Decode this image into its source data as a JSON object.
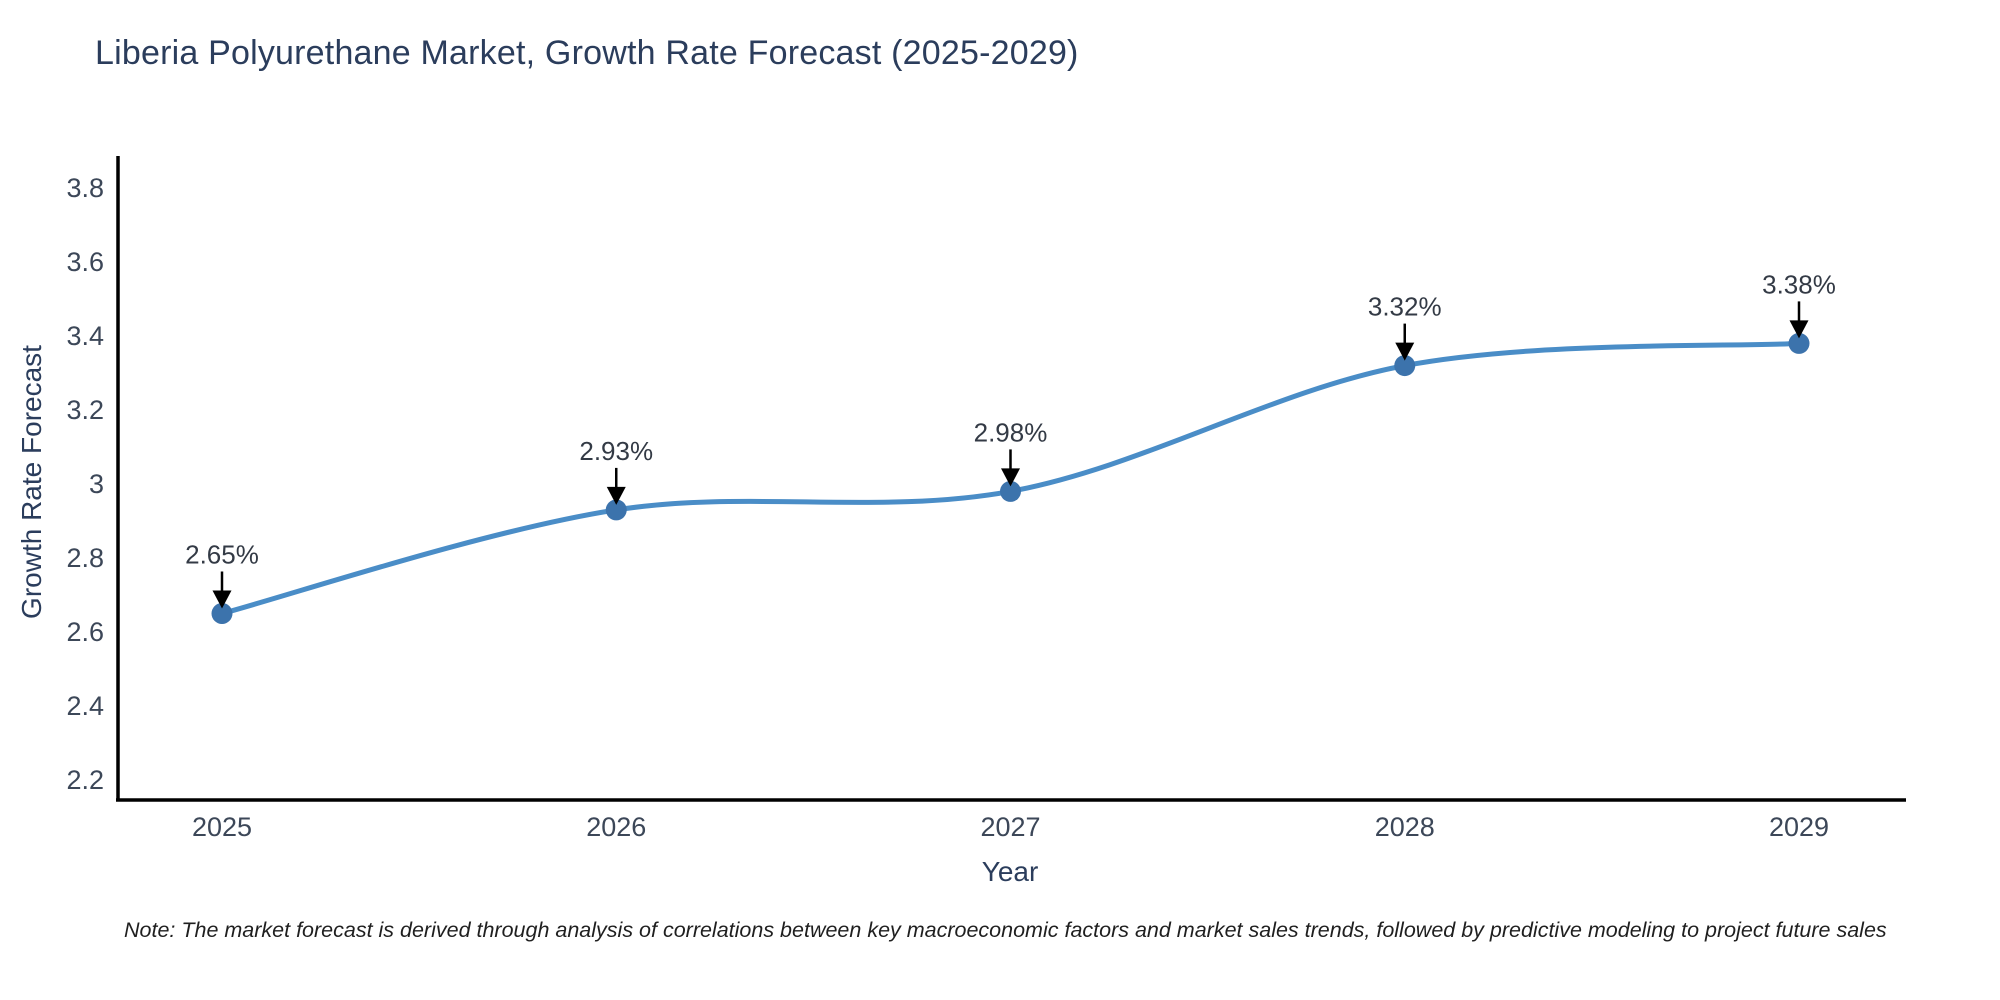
{
  "page": {
    "note": "Note: The market forecast is derived through analysis of correlations between key macroeconomic factors and market sales trends, followed by predictive modeling to project future sales"
  },
  "chart_data": {
    "type": "line",
    "title": "Liberia Polyurethane Market, Growth Rate Forecast (2025-2029)",
    "xlabel": "Year",
    "ylabel": "Growth Rate Forecast",
    "categories": [
      "2025",
      "2026",
      "2027",
      "2028",
      "2029"
    ],
    "values": [
      2.65,
      2.93,
      2.98,
      3.32,
      3.38
    ],
    "point_labels": [
      "2.65%",
      "2.93%",
      "2.98%",
      "3.32%",
      "3.38%"
    ],
    "yticks": [
      "3.8",
      "3.6",
      "3.4",
      "3.2",
      "3",
      "2.8",
      "2.6",
      "2.4",
      "2.2"
    ],
    "ylim": [
      2.2,
      3.8
    ],
    "grid": false,
    "legend": "none",
    "curve": "spline",
    "line_color": "#4a8dc7",
    "marker_color": "#3c73ac",
    "annotation_arrow_color": "#000000",
    "axis_color": "#000000"
  }
}
